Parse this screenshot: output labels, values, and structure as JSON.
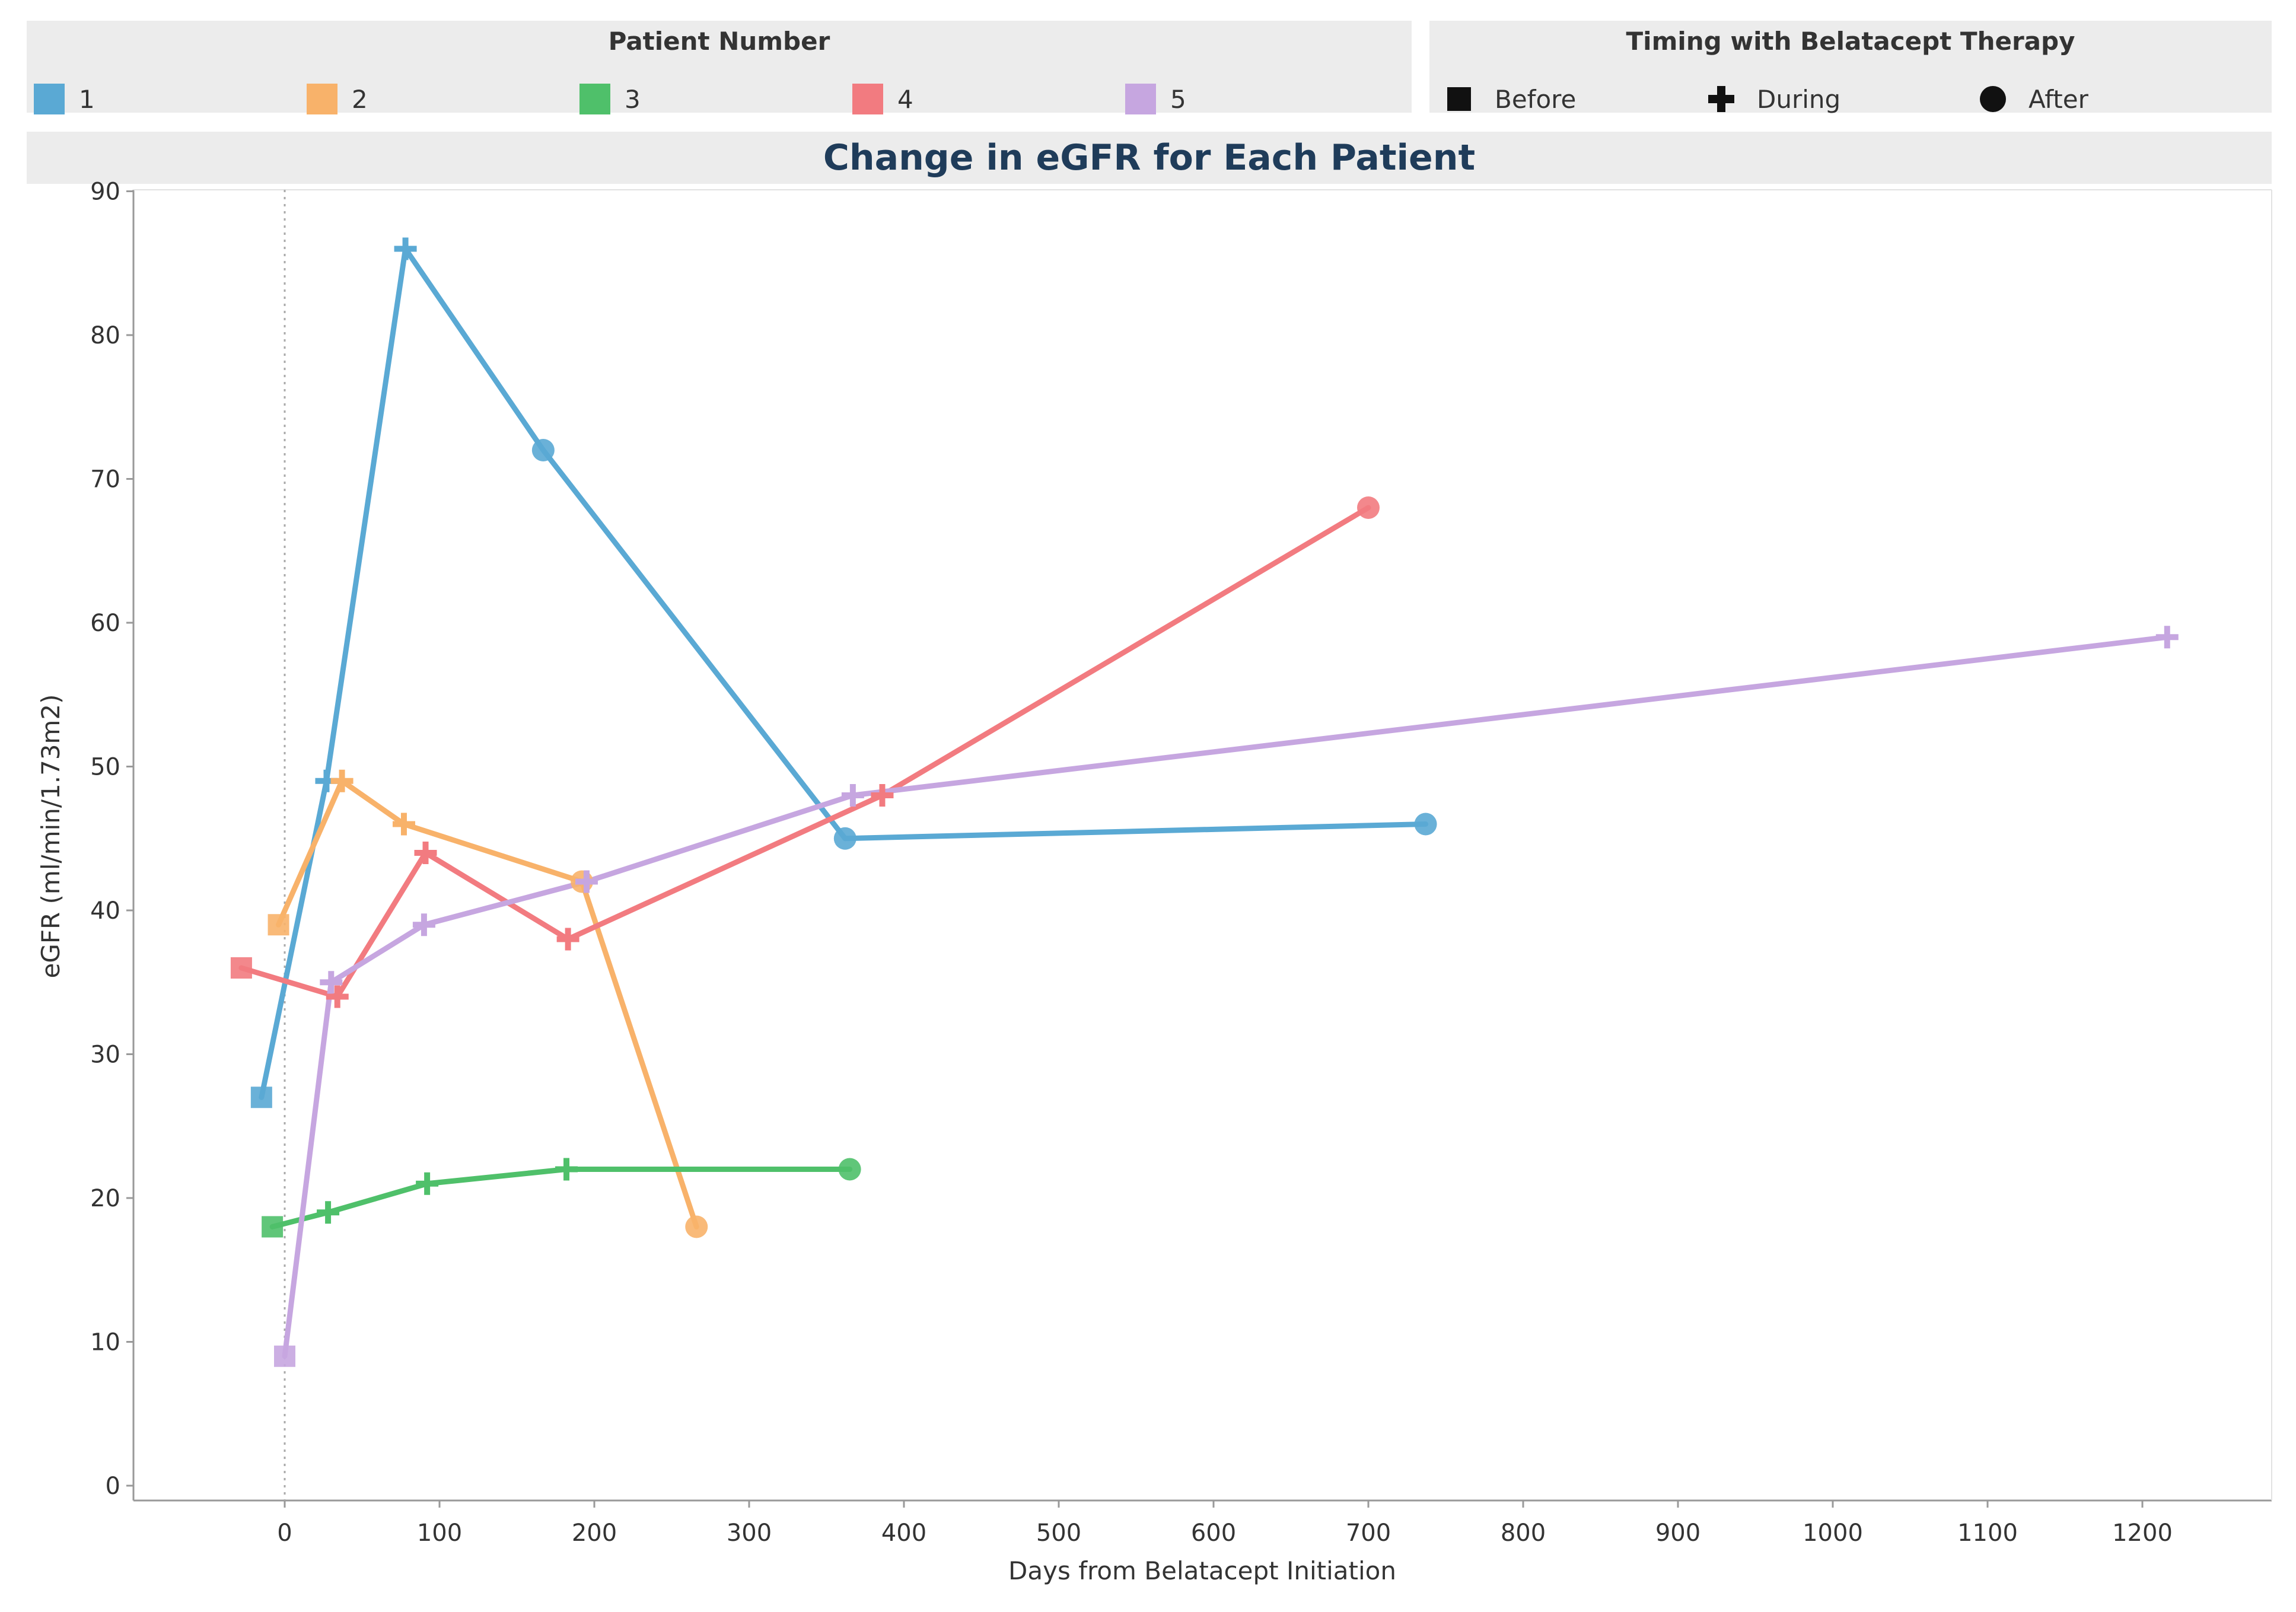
{
  "legend_patients": {
    "title": "Patient Number",
    "items": [
      {
        "label": "1",
        "color": "#5aa9d4"
      },
      {
        "label": "2",
        "color": "#f8b26a"
      },
      {
        "label": "3",
        "color": "#4fc06a"
      },
      {
        "label": "4",
        "color": "#f27b80"
      },
      {
        "label": "5",
        "color": "#c6a6e0"
      }
    ]
  },
  "legend_timing": {
    "title": "Timing with Belatacept Therapy",
    "items": [
      {
        "label": "Before",
        "icon": "square-icon"
      },
      {
        "label": "During",
        "icon": "plus-icon"
      },
      {
        "label": "After",
        "icon": "circle-icon"
      }
    ]
  },
  "chart_data": {
    "type": "line",
    "title": "Change in eGFR for Each Patient",
    "xlabel": "Days from Belatacept Initiation",
    "ylabel": "eGFR (ml/min/1.73m2)",
    "xlim": [
      -100,
      1260
    ],
    "ylim": [
      -1,
      91
    ],
    "xticks": [
      0,
      100,
      200,
      300,
      400,
      500,
      600,
      700,
      800,
      900,
      1000,
      1100,
      1200
    ],
    "yticks": [
      0,
      10,
      20,
      30,
      40,
      50,
      60,
      70,
      80,
      90
    ],
    "reference_line_x": 0,
    "grid": false,
    "series": [
      {
        "name": "1",
        "color": "#5aa9d4",
        "points": [
          {
            "x": -15,
            "y": 27,
            "timing": "Before"
          },
          {
            "x": 27,
            "y": 49,
            "timing": "During"
          },
          {
            "x": 78,
            "y": 86,
            "timing": "During"
          },
          {
            "x": 167,
            "y": 72,
            "timing": "After"
          },
          {
            "x": 362,
            "y": 45,
            "timing": "After"
          },
          {
            "x": 737,
            "y": 46,
            "timing": "After"
          }
        ]
      },
      {
        "name": "2",
        "color": "#f8b26a",
        "points": [
          {
            "x": -4,
            "y": 39,
            "timing": "Before"
          },
          {
            "x": 37,
            "y": 49,
            "timing": "During"
          },
          {
            "x": 77,
            "y": 46,
            "timing": "During"
          },
          {
            "x": 192,
            "y": 42,
            "timing": "After"
          },
          {
            "x": 266,
            "y": 18,
            "timing": "After"
          }
        ]
      },
      {
        "name": "3",
        "color": "#4fc06a",
        "points": [
          {
            "x": -8,
            "y": 18,
            "timing": "Before"
          },
          {
            "x": 28,
            "y": 19,
            "timing": "During"
          },
          {
            "x": 92,
            "y": 21,
            "timing": "During"
          },
          {
            "x": 182,
            "y": 22,
            "timing": "During"
          },
          {
            "x": 365,
            "y": 22,
            "timing": "After"
          }
        ]
      },
      {
        "name": "4",
        "color": "#f27b80",
        "points": [
          {
            "x": -28,
            "y": 36,
            "timing": "Before"
          },
          {
            "x": 34,
            "y": 34,
            "timing": "During"
          },
          {
            "x": 91,
            "y": 44,
            "timing": "During"
          },
          {
            "x": 183,
            "y": 38,
            "timing": "During"
          },
          {
            "x": 386,
            "y": 48,
            "timing": "During"
          },
          {
            "x": 700,
            "y": 68,
            "timing": "After"
          }
        ]
      },
      {
        "name": "5",
        "color": "#c6a6e0",
        "points": [
          {
            "x": 0,
            "y": 9,
            "timing": "Before"
          },
          {
            "x": 30,
            "y": 35,
            "timing": "During"
          },
          {
            "x": 90,
            "y": 39,
            "timing": "During"
          },
          {
            "x": 195,
            "y": 42,
            "timing": "During"
          },
          {
            "x": 367,
            "y": 48,
            "timing": "During"
          },
          {
            "x": 1216,
            "y": 59,
            "timing": "During"
          }
        ]
      }
    ]
  }
}
